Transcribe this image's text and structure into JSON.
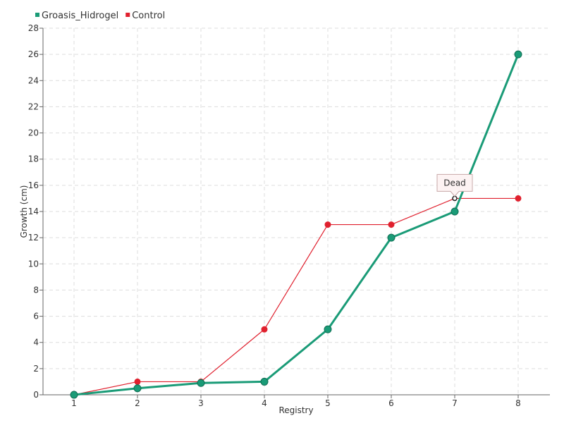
{
  "chart_data": {
    "type": "line",
    "categories": [
      1,
      2,
      3,
      4,
      5,
      6,
      7,
      8
    ],
    "xlabel": "Registry",
    "ylabel": "Growth (cm)",
    "ylim": [
      0,
      28
    ],
    "yticks": [
      0,
      2,
      4,
      6,
      8,
      10,
      12,
      14,
      16,
      18,
      20,
      22,
      24,
      26,
      28
    ],
    "grid": true,
    "legend_position": "top-left",
    "series": [
      {
        "name": "Groasis_Hidrogel",
        "color": "#1a9b77",
        "values": [
          0,
          0.5,
          0.9,
          1,
          5,
          12,
          14,
          26
        ]
      },
      {
        "name": "Control",
        "color": "#e0202e",
        "values": [
          0,
          1,
          1,
          5,
          13,
          13,
          15,
          15
        ]
      }
    ],
    "annotations": [
      {
        "text": "Dead",
        "series": "Control",
        "x": 7,
        "y": 15
      }
    ]
  }
}
